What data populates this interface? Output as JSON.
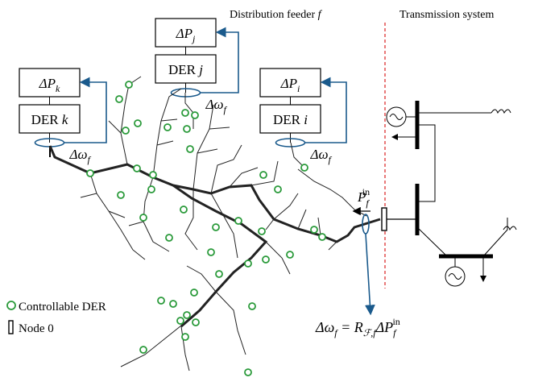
{
  "header": {
    "feeder_label": {
      "text": "Distribution feeder ",
      "var": "f"
    },
    "transmission_label": "Transmission system"
  },
  "der_blocks": [
    {
      "power": {
        "base": "ΔP",
        "sub": "j"
      },
      "name": {
        "base": "DER ",
        "var": "j"
      },
      "freq": {
        "base": "Δω",
        "sub": "f"
      }
    },
    {
      "power": {
        "base": "ΔP",
        "sub": "k"
      },
      "name": {
        "base": "DER ",
        "var": "k"
      },
      "freq": {
        "base": "Δω",
        "sub": "f"
      }
    },
    {
      "power": {
        "base": "ΔP",
        "sub": "i"
      },
      "name": {
        "base": "DER ",
        "var": "i"
      },
      "freq": {
        "base": "Δω",
        "sub": "f"
      }
    }
  ],
  "input_power": {
    "base": "P",
    "sub": "f",
    "sup": "in"
  },
  "legend": [
    "Controllable DER",
    "Node 0"
  ],
  "equation": {
    "lhs": "Δω",
    "lhs_sub": "f",
    "mid": " = R",
    "r_sub": "ℱ,f",
    "dp": "ΔP",
    "dp_sub": "f",
    "dp_sup": "in"
  }
}
